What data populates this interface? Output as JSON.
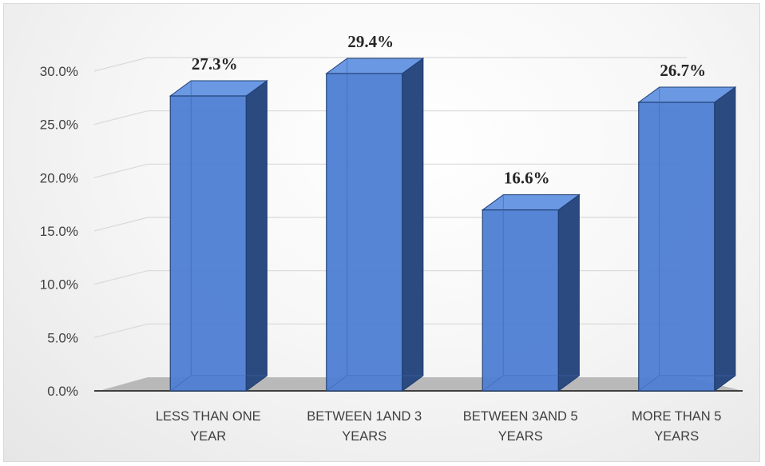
{
  "chart_data": {
    "type": "bar",
    "categories": [
      [
        "LESS THAN ONE",
        "YEAR"
      ],
      [
        "BETWEEN 1AND 3",
        "YEARS"
      ],
      [
        "BETWEEN 3AND 5",
        "YEARS"
      ],
      [
        "MORE THAN 5",
        "YEARS"
      ]
    ],
    "values": [
      27.3,
      29.4,
      16.6,
      26.7
    ],
    "data_labels": [
      "27.3%",
      "29.4%",
      "16.6%",
      "26.7%"
    ],
    "y_ticks": [
      "0.0%",
      "5.0%",
      "10.0%",
      "15.0%",
      "20.0%",
      "25.0%",
      "30.0%"
    ],
    "ylim": [
      0,
      30
    ],
    "title": "",
    "xlabel": "",
    "ylabel": "",
    "grid": true,
    "legend": "none",
    "style": "3d-column",
    "colors": {
      "bar_front": "#4f7fd4",
      "bar_side": "#2b4a80",
      "bar_top": "#6b98e3",
      "bar_edge": "#1f3f73",
      "grid": "#d9d9d9",
      "floor": "#a6a6a6",
      "axis": "#404040"
    }
  }
}
